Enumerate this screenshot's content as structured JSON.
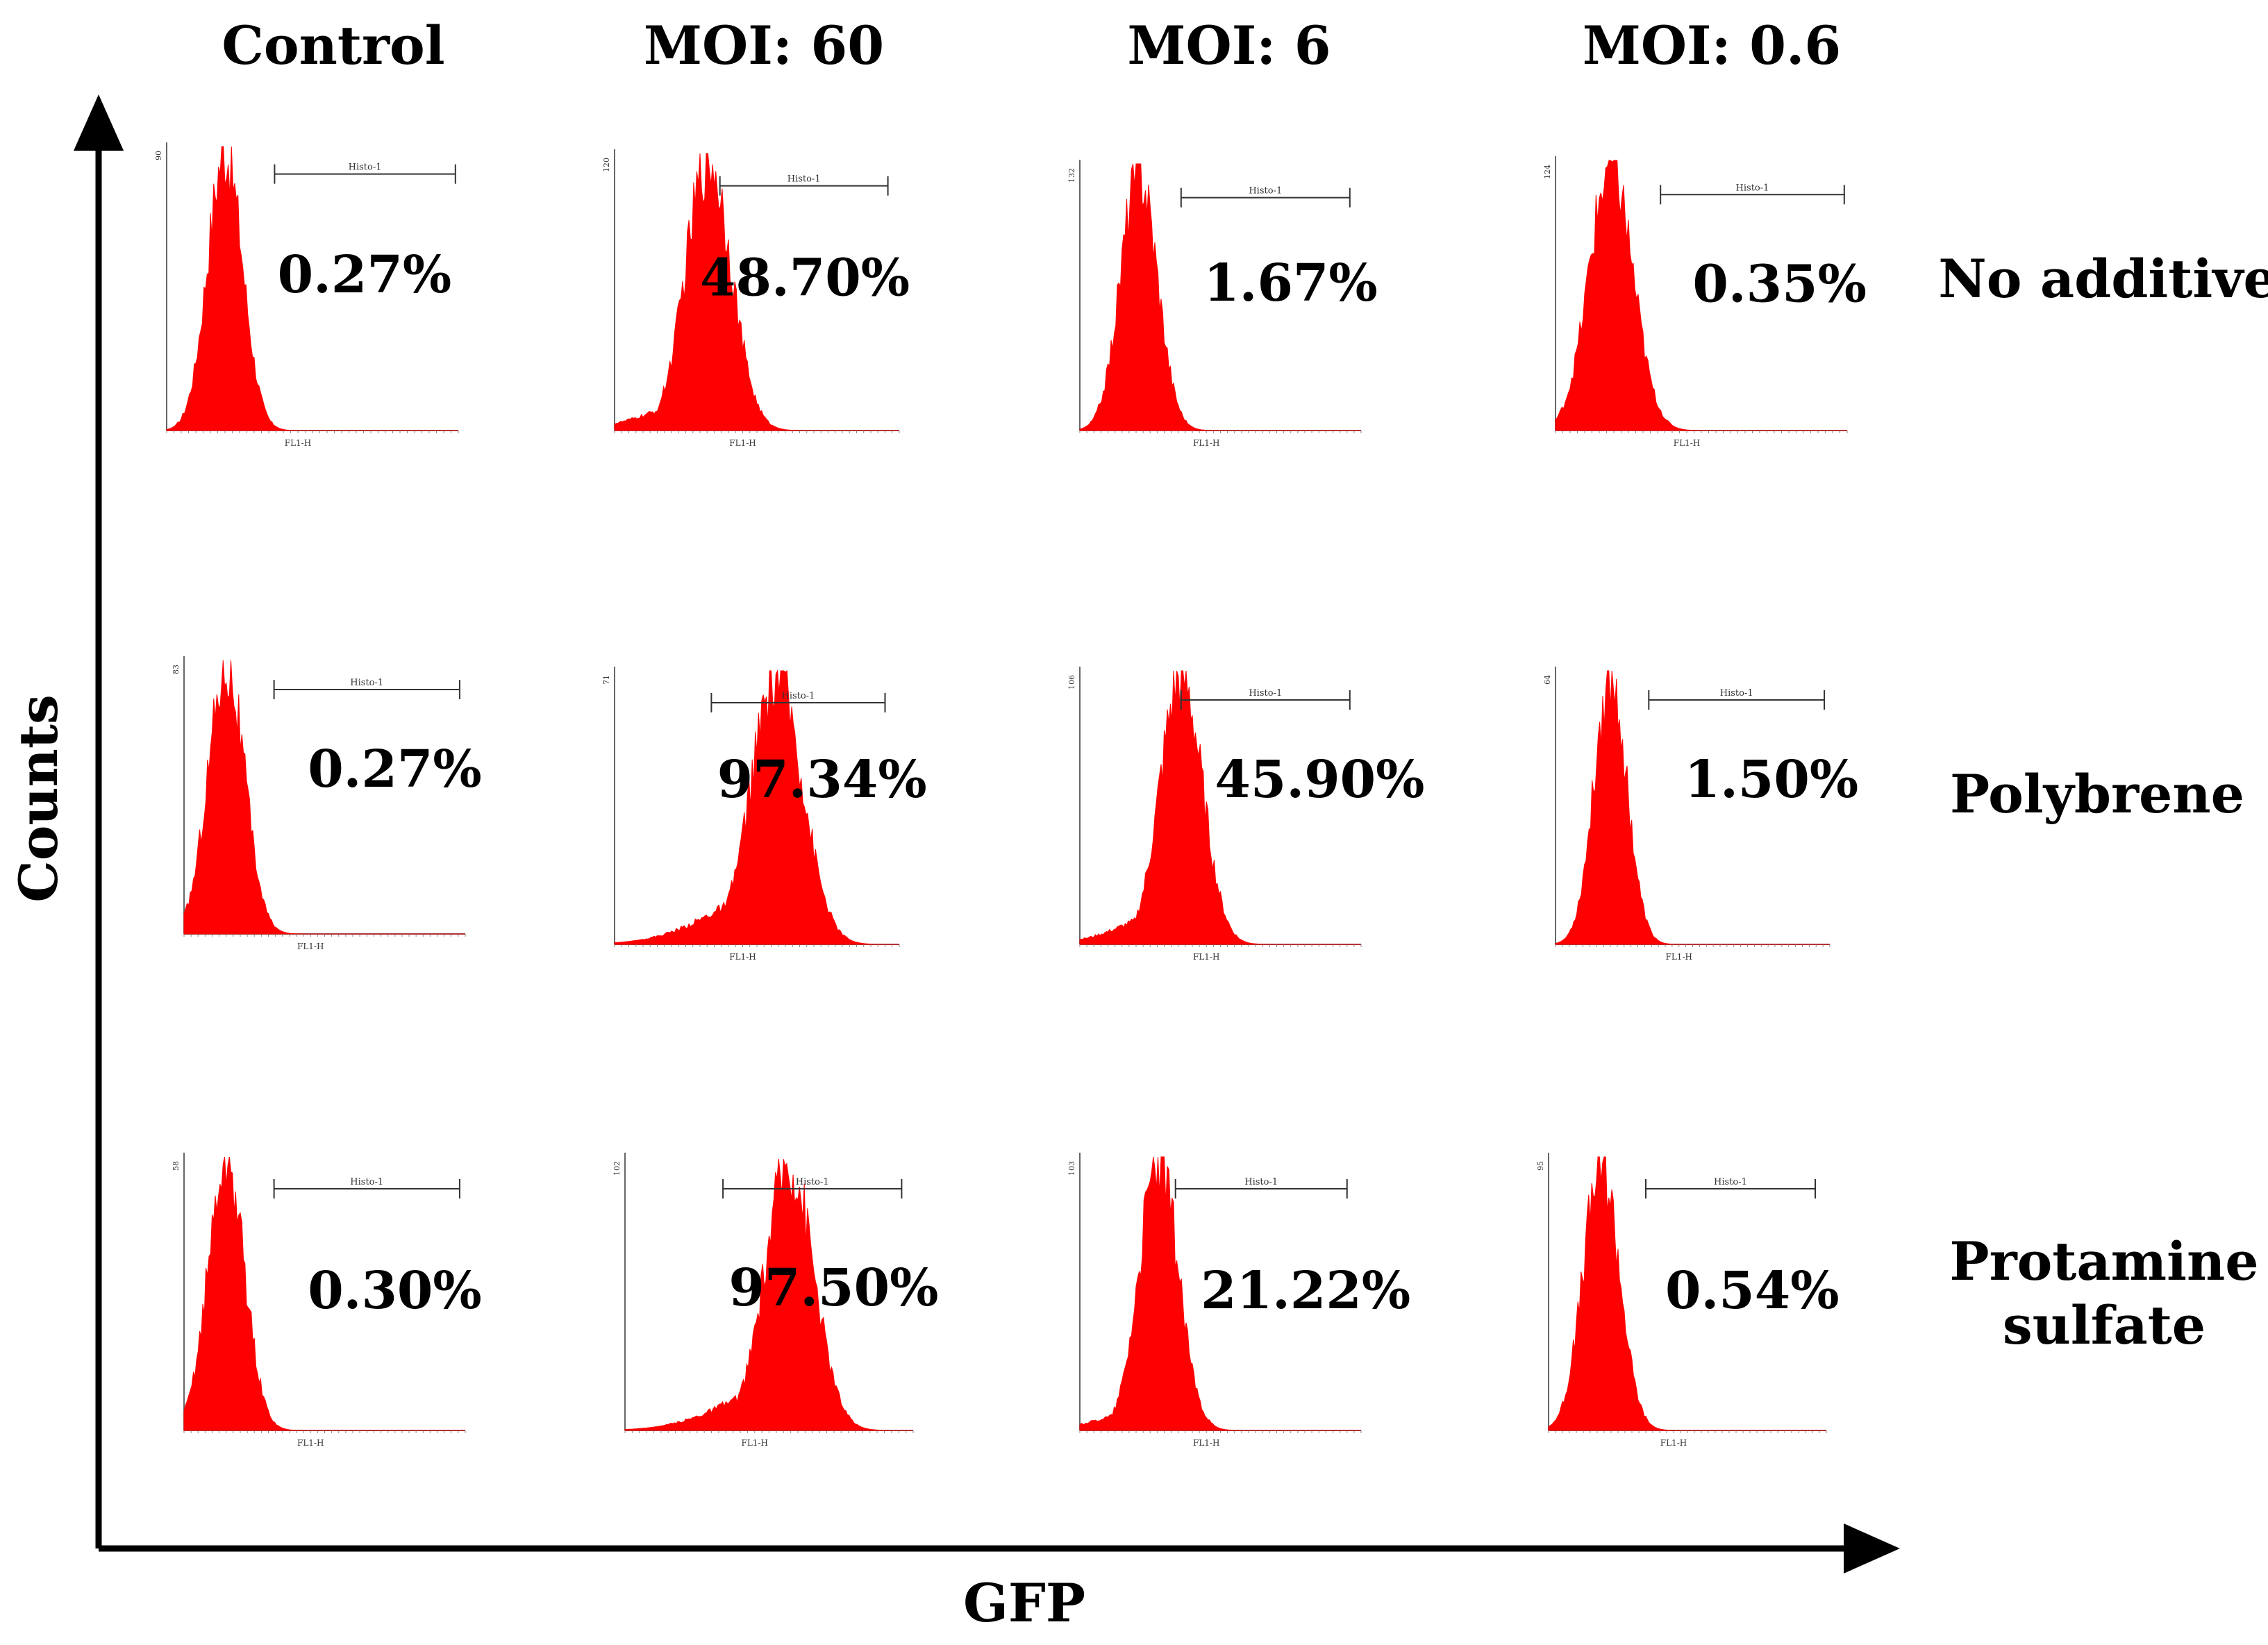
{
  "chart_data": {
    "type": "histogram-grid",
    "title": "",
    "xlabel": "GFP",
    "ylabel": "Counts",
    "columns": [
      "Control",
      "MOI: 60",
      "MOI: 6",
      "MOI: 0.6"
    ],
    "rows": [
      "No additive",
      "Polybrene",
      "Protamine sulfate"
    ],
    "row_label_lines": [
      [
        "No additive"
      ],
      [
        "Polybrene"
      ],
      [
        "Protamine",
        "sulfate"
      ]
    ],
    "gate_label": "Histo-1",
    "x_channel": "FL1-H",
    "series_color": "#ff0000",
    "panels": [
      {
        "row": 0,
        "col": 0,
        "percent": "0.27%",
        "ymax": "90",
        "peak_position": 0.2,
        "peak_width": 0.06,
        "left_tail": 0.0
      },
      {
        "row": 0,
        "col": 1,
        "percent": "48.70%",
        "ymax": "120",
        "peak_position": 0.33,
        "peak_width": 0.08,
        "left_tail": 0.25
      },
      {
        "row": 0,
        "col": 2,
        "percent": "1.67%",
        "ymax": "132",
        "peak_position": 0.21,
        "peak_width": 0.065,
        "left_tail": 0.0
      },
      {
        "row": 0,
        "col": 3,
        "percent": "0.35%",
        "ymax": "124",
        "peak_position": 0.19,
        "peak_width": 0.075,
        "left_tail": 0.0
      },
      {
        "row": 1,
        "col": 0,
        "percent": "0.27%",
        "ymax": "83",
        "peak_position": 0.15,
        "peak_width": 0.065,
        "left_tail": 0.0
      },
      {
        "row": 1,
        "col": 1,
        "percent": "97.34%",
        "ymax": "71",
        "peak_position": 0.57,
        "peak_width": 0.09,
        "left_tail": 0.45
      },
      {
        "row": 1,
        "col": 2,
        "percent": "45.90%",
        "ymax": "106",
        "peak_position": 0.36,
        "peak_width": 0.075,
        "left_tail": 0.3
      },
      {
        "row": 1,
        "col": 3,
        "percent": "1.50%",
        "ymax": "64",
        "peak_position": 0.2,
        "peak_width": 0.06,
        "left_tail": 0.0
      },
      {
        "row": 2,
        "col": 0,
        "percent": "0.30%",
        "ymax": "58",
        "peak_position": 0.15,
        "peak_width": 0.065,
        "left_tail": 0.0
      },
      {
        "row": 2,
        "col": 1,
        "percent": "97.50%",
        "ymax": "102",
        "peak_position": 0.57,
        "peak_width": 0.085,
        "left_tail": 0.4
      },
      {
        "row": 2,
        "col": 2,
        "percent": "21.22%",
        "ymax": "103",
        "peak_position": 0.28,
        "peak_width": 0.07,
        "left_tail": 0.2
      },
      {
        "row": 2,
        "col": 3,
        "percent": "0.54%",
        "ymax": "95",
        "peak_position": 0.19,
        "peak_width": 0.065,
        "left_tail": 0.0
      }
    ]
  }
}
